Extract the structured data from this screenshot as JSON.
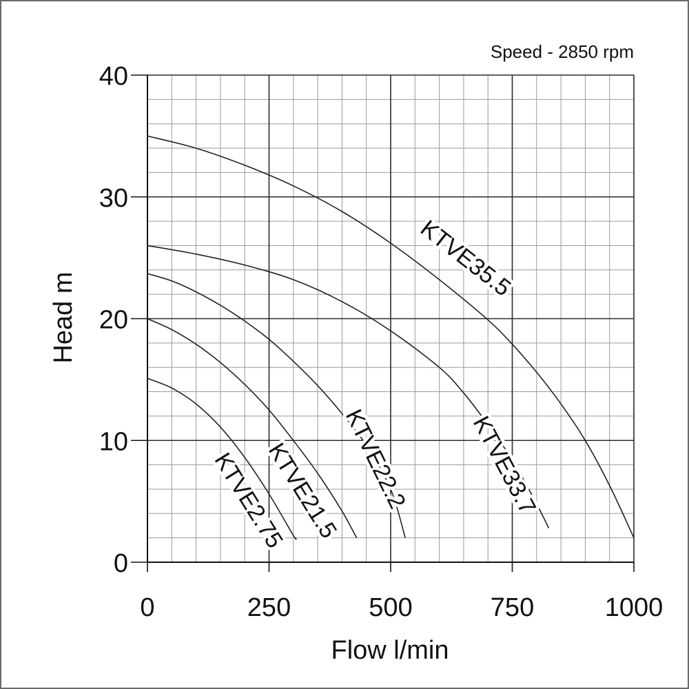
{
  "chart_data": {
    "type": "line",
    "title": "",
    "annotation": "Speed - 2850 rpm",
    "xlabel": "Flow l/min",
    "ylabel": "Head m",
    "xlim": [
      0,
      1000
    ],
    "ylim": [
      0,
      40
    ],
    "x_ticks": [
      "0",
      "250",
      "500",
      "750",
      "1000"
    ],
    "y_ticks": [
      "0",
      "10",
      "20",
      "30",
      "40"
    ],
    "minor_x_step": 50,
    "minor_y_step": 2,
    "major_x_step": 250,
    "major_y_step": 10,
    "grid": true,
    "legend": "none",
    "line_color": "#222222",
    "grid_color": "#9a9a9a",
    "series": [
      {
        "name": "KTVE2.75",
        "x": [
          0,
          50,
          100,
          150,
          200,
          250,
          300,
          305
        ],
        "y": [
          15.1,
          14.3,
          13.0,
          11.1,
          8.6,
          5.6,
          2.2,
          2.0
        ]
      },
      {
        "name": "KTVE21.5",
        "x": [
          0,
          50,
          100,
          150,
          200,
          250,
          300,
          350,
          400,
          430
        ],
        "y": [
          20.0,
          19.1,
          17.9,
          16.4,
          14.6,
          12.5,
          10.0,
          7.3,
          4.2,
          2.0
        ]
      },
      {
        "name": "KTVE22.2",
        "x": [
          0,
          50,
          100,
          150,
          200,
          250,
          300,
          350,
          400,
          450,
          500,
          530
        ],
        "y": [
          23.7,
          23.1,
          22.2,
          21.1,
          19.8,
          18.3,
          16.5,
          14.5,
          12.2,
          9.6,
          6.0,
          2.0
        ]
      },
      {
        "name": "KTVE33.7",
        "x": [
          0,
          100,
          200,
          300,
          400,
          500,
          600,
          650,
          700,
          750,
          800,
          825
        ],
        "y": [
          26.0,
          25.3,
          24.4,
          23.2,
          21.4,
          19.0,
          16.0,
          13.9,
          11.3,
          8.4,
          4.8,
          2.8
        ]
      },
      {
        "name": "KTVE35.5",
        "x": [
          0,
          100,
          200,
          300,
          400,
          500,
          600,
          700,
          750,
          800,
          850,
          900,
          950,
          1000
        ],
        "y": [
          35.0,
          34.0,
          32.6,
          30.9,
          28.8,
          26.2,
          23.2,
          19.9,
          17.9,
          15.6,
          13.0,
          10.0,
          6.3,
          2.0
        ]
      }
    ],
    "curve_labels": [
      {
        "series": "KTVE35.5",
        "text": "KTVE35.5",
        "x": 655,
        "y": 25.0,
        "angle": 38
      },
      {
        "series": "KTVE33.7",
        "text": "KTVE33.7",
        "x": 735,
        "y": 8.0,
        "angle": 62
      },
      {
        "series": "KTVE22.2",
        "text": "KTVE22.2",
        "x": 470,
        "y": 8.5,
        "angle": 64
      },
      {
        "series": "KTVE21.5",
        "text": "KTVE21.5",
        "x": 320,
        "y": 5.9,
        "angle": 58
      },
      {
        "series": "KTVE2.75",
        "text": "KTVE2.75",
        "x": 209,
        "y": 5.1,
        "angle": 58
      }
    ]
  }
}
